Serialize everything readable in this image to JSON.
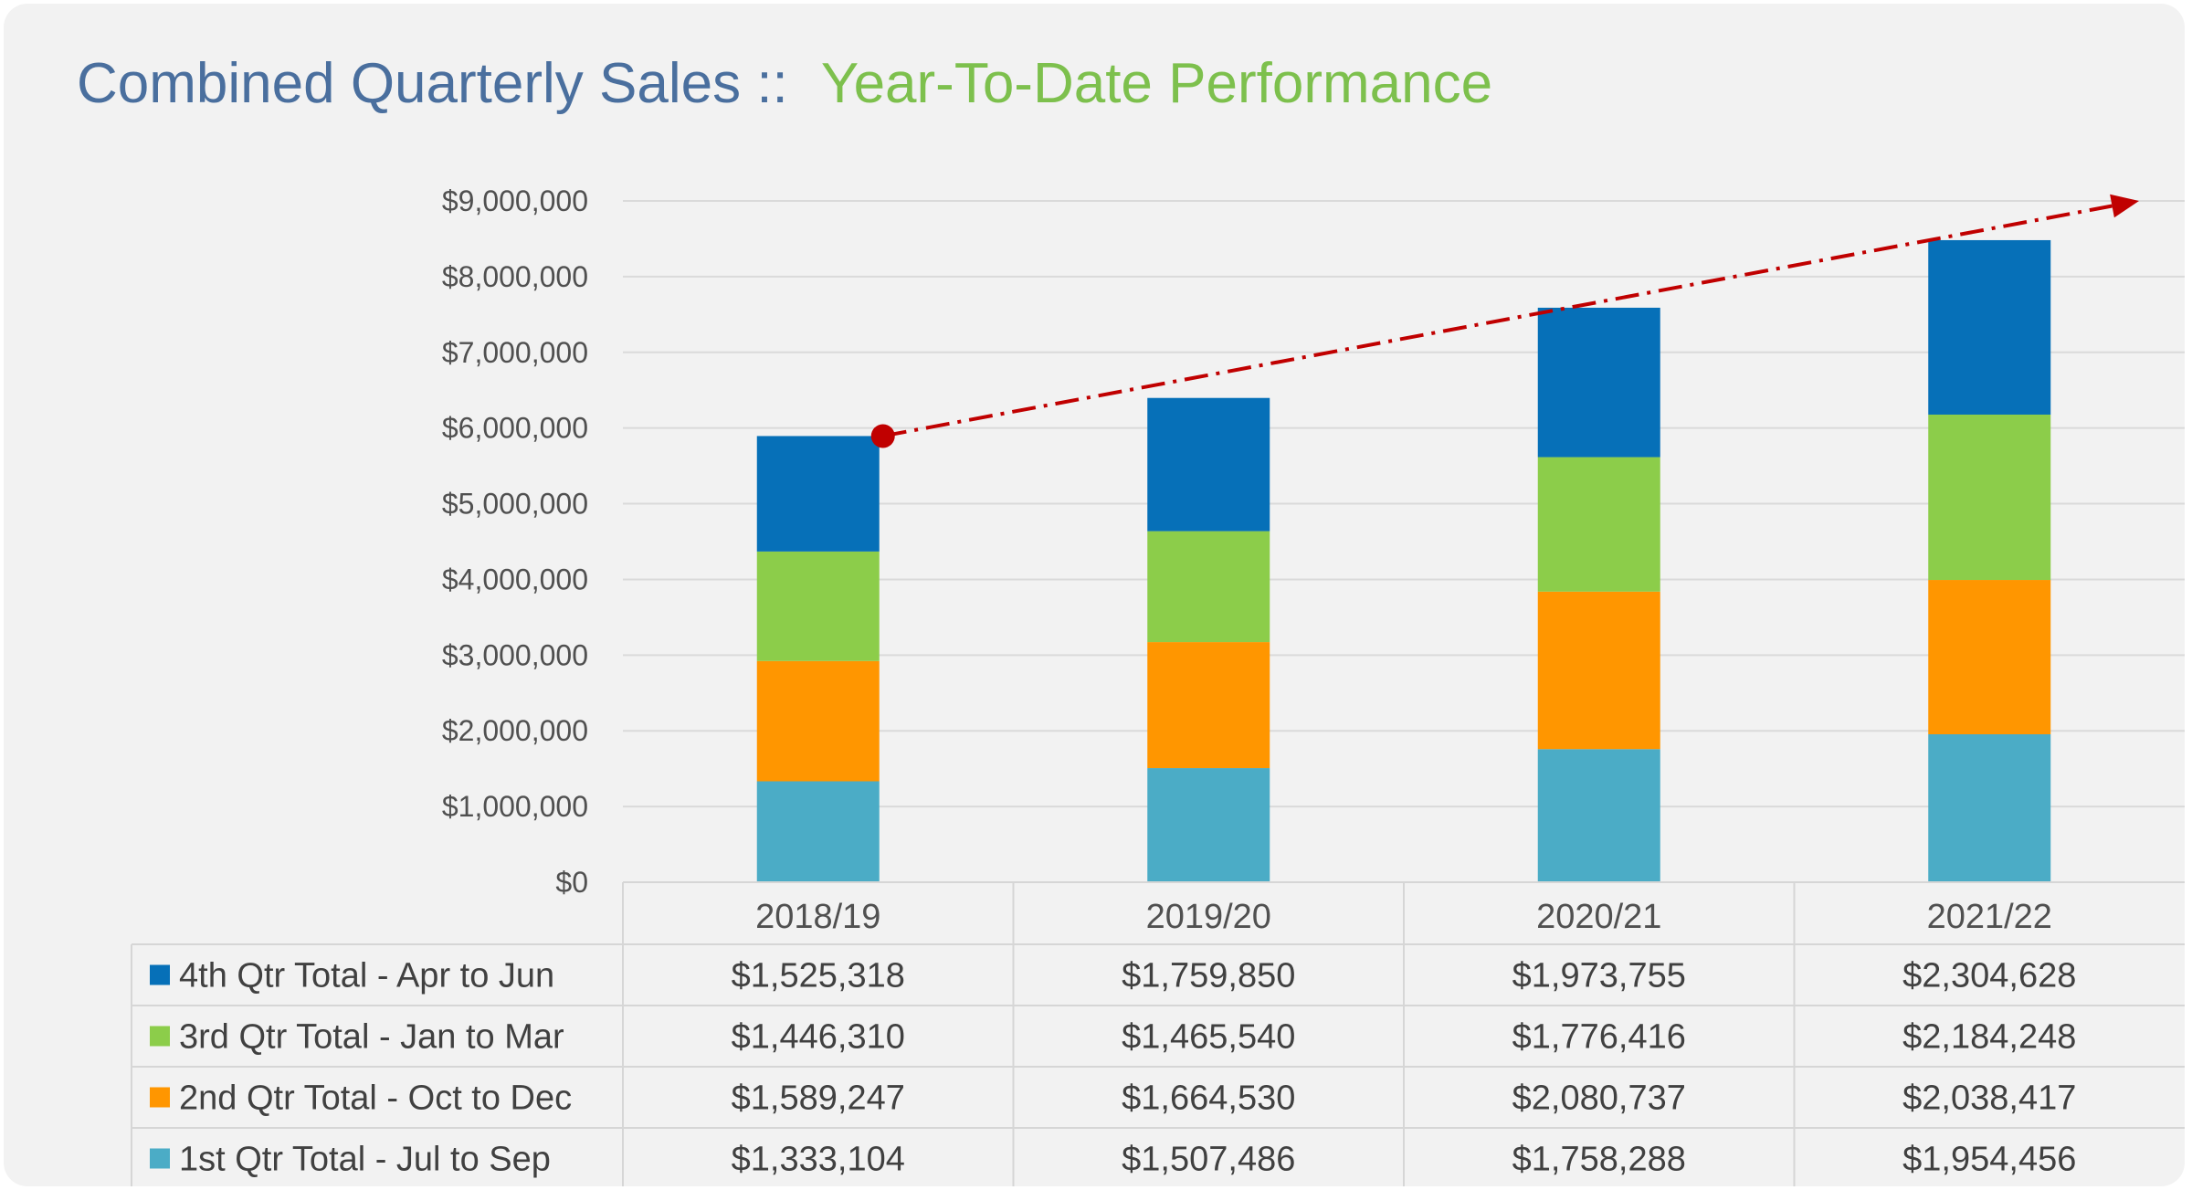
{
  "chart_data": {
    "type": "bar",
    "stacked": true,
    "title": "Combined Quarterly Sales ::",
    "subtitle": "Year-To-Date Performance",
    "categories": [
      "2018/19",
      "2019/20",
      "2020/21",
      "2021/22"
    ],
    "ylim": [
      0,
      9000000
    ],
    "yticks": [
      "$0",
      "$1,000,000",
      "$2,000,000",
      "$3,000,000",
      "$4,000,000",
      "$5,000,000",
      "$6,000,000",
      "$7,000,000",
      "$8,000,000",
      "$9,000,000"
    ],
    "grid": true,
    "legend": "data-table",
    "series": [
      {
        "name": "1st Qtr Total - Jul to Sep",
        "color": "#4bacc6",
        "values": [
          1333104,
          1507486,
          1758288,
          1954456
        ],
        "labels": [
          "$1,333,104",
          "$1,507,486",
          "$1,758,288",
          "$1,954,456"
        ]
      },
      {
        "name": "2nd Qtr Total - Oct to Dec",
        "color": "#ff9600",
        "values": [
          1589247,
          1664530,
          2080737,
          2038417
        ],
        "labels": [
          "$1,589,247",
          "$1,664,530",
          "$2,080,737",
          "$2,038,417"
        ]
      },
      {
        "name": "3rd Qtr Total - Jan to Mar",
        "color": "#8ccd4a",
        "values": [
          1446310,
          1465540,
          1776416,
          2184248
        ],
        "labels": [
          "$1,446,310",
          "$1,465,540",
          "$1,776,416",
          "$2,184,248"
        ]
      },
      {
        "name": "4th Qtr Total - Apr to Jun",
        "color": "#0670b8",
        "values": [
          1525318,
          1759850,
          1973755,
          2304628
        ],
        "labels": [
          "$1,525,318",
          "$1,759,850",
          "$1,973,755",
          "$2,304,628"
        ]
      }
    ],
    "table_row_order": [
      3,
      2,
      1,
      0
    ],
    "trend_arrow": {
      "color": "#c00000",
      "from_value": 5893979,
      "to_value": 9000000
    }
  }
}
